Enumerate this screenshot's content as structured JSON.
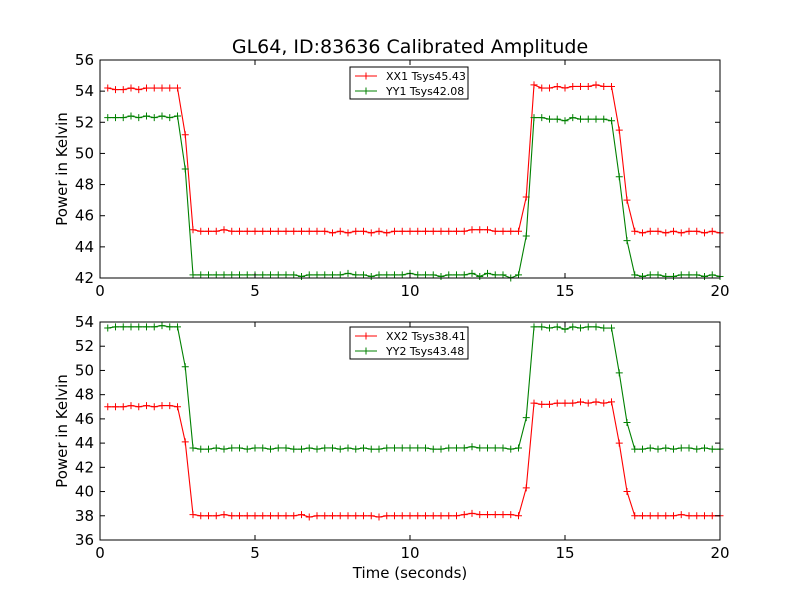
{
  "figure": {
    "title": "GL64, ID:83636 Calibrated Amplitude",
    "xlabel": "Time (seconds)"
  },
  "colors": {
    "red": "#ff0000",
    "green": "#008000"
  },
  "chart_data": [
    {
      "type": "line",
      "title": "GL64, ID:83636 Calibrated Amplitude",
      "xlabel": "",
      "ylabel": "Power in Kelvin",
      "xlim": [
        0,
        20
      ],
      "ylim": [
        42,
        56
      ],
      "xticks": [
        0,
        5,
        10,
        15,
        20
      ],
      "yticks": [
        42,
        44,
        46,
        48,
        50,
        52,
        54,
        56
      ],
      "grid": false,
      "legend": "top-center",
      "x": [
        0.25,
        0.5,
        0.75,
        1.0,
        1.25,
        1.5,
        1.75,
        2.0,
        2.25,
        2.5,
        2.75,
        3.0,
        3.25,
        3.5,
        3.75,
        4.0,
        4.25,
        4.5,
        4.75,
        5.0,
        5.25,
        5.5,
        5.75,
        6.0,
        6.25,
        6.5,
        6.75,
        7.0,
        7.25,
        7.5,
        7.75,
        8.0,
        8.25,
        8.5,
        8.75,
        9.0,
        9.25,
        9.5,
        9.75,
        10.0,
        10.25,
        10.5,
        10.75,
        11.0,
        11.25,
        11.5,
        11.75,
        12.0,
        12.25,
        12.5,
        12.75,
        13.0,
        13.25,
        13.5,
        13.75,
        14.0,
        14.25,
        14.5,
        14.75,
        15.0,
        15.25,
        15.5,
        15.75,
        16.0,
        16.25,
        16.5,
        16.75,
        17.0,
        17.25,
        17.5,
        17.75,
        18.0,
        18.25,
        18.5,
        18.75,
        19.0,
        19.25,
        19.5,
        19.75,
        20.0
      ],
      "series": [
        {
          "name": "XX1 Tsys45.43",
          "color": "#ff0000",
          "values": [
            54.2,
            54.1,
            54.1,
            54.2,
            54.1,
            54.2,
            54.2,
            54.2,
            54.2,
            54.2,
            51.2,
            45.1,
            45.0,
            45.0,
            45.0,
            45.1,
            45.0,
            45.0,
            45.0,
            45.0,
            45.0,
            45.0,
            45.0,
            45.0,
            45.0,
            45.0,
            45.0,
            45.0,
            45.0,
            44.9,
            45.0,
            44.9,
            45.0,
            45.0,
            44.9,
            45.0,
            44.9,
            45.0,
            45.0,
            45.0,
            45.0,
            45.0,
            45.0,
            45.0,
            45.0,
            45.0,
            45.0,
            45.1,
            45.1,
            45.1,
            45.0,
            45.0,
            45.0,
            45.0,
            47.2,
            54.4,
            54.2,
            54.2,
            54.3,
            54.2,
            54.3,
            54.3,
            54.3,
            54.4,
            54.3,
            54.3,
            51.5,
            47.0,
            45.0,
            44.9,
            45.0,
            45.0,
            44.9,
            45.0,
            44.9,
            45.0,
            45.0,
            44.9,
            45.0,
            44.9
          ]
        },
        {
          "name": "YY1 Tsys42.08",
          "color": "#008000",
          "values": [
            52.3,
            52.3,
            52.3,
            52.4,
            52.3,
            52.4,
            52.3,
            52.4,
            52.3,
            52.4,
            49.0,
            42.2,
            42.2,
            42.2,
            42.2,
            42.2,
            42.2,
            42.2,
            42.2,
            42.2,
            42.2,
            42.2,
            42.2,
            42.2,
            42.2,
            42.1,
            42.2,
            42.2,
            42.2,
            42.2,
            42.2,
            42.3,
            42.2,
            42.2,
            42.1,
            42.2,
            42.2,
            42.2,
            42.2,
            42.3,
            42.2,
            42.2,
            42.2,
            42.1,
            42.2,
            42.2,
            42.2,
            42.3,
            42.1,
            42.3,
            42.2,
            42.2,
            42.0,
            42.2,
            44.7,
            52.3,
            52.3,
            52.2,
            52.2,
            52.1,
            52.3,
            52.2,
            52.2,
            52.2,
            52.2,
            52.1,
            48.5,
            44.4,
            42.2,
            42.1,
            42.2,
            42.2,
            42.1,
            42.1,
            42.2,
            42.2,
            42.2,
            42.1,
            42.2,
            42.1
          ]
        }
      ]
    },
    {
      "type": "line",
      "title": "",
      "xlabel": "Time (seconds)",
      "ylabel": "Power in Kelvin",
      "xlim": [
        0,
        20
      ],
      "ylim": [
        36,
        54
      ],
      "xticks": [
        0,
        5,
        10,
        15,
        20
      ],
      "yticks": [
        36,
        38,
        40,
        42,
        44,
        46,
        48,
        50,
        52,
        54
      ],
      "grid": false,
      "legend": "top-center",
      "x": [
        0.25,
        0.5,
        0.75,
        1.0,
        1.25,
        1.5,
        1.75,
        2.0,
        2.25,
        2.5,
        2.75,
        3.0,
        3.25,
        3.5,
        3.75,
        4.0,
        4.25,
        4.5,
        4.75,
        5.0,
        5.25,
        5.5,
        5.75,
        6.0,
        6.25,
        6.5,
        6.75,
        7.0,
        7.25,
        7.5,
        7.75,
        8.0,
        8.25,
        8.5,
        8.75,
        9.0,
        9.25,
        9.5,
        9.75,
        10.0,
        10.25,
        10.5,
        10.75,
        11.0,
        11.25,
        11.5,
        11.75,
        12.0,
        12.25,
        12.5,
        12.75,
        13.0,
        13.25,
        13.5,
        13.75,
        14.0,
        14.25,
        14.5,
        14.75,
        15.0,
        15.25,
        15.5,
        15.75,
        16.0,
        16.25,
        16.5,
        16.75,
        17.0,
        17.25,
        17.5,
        17.75,
        18.0,
        18.25,
        18.5,
        18.75,
        19.0,
        19.25,
        19.5,
        19.75,
        20.0
      ],
      "series": [
        {
          "name": "XX2 Tsys38.41",
          "color": "#ff0000",
          "values": [
            47.0,
            47.0,
            47.0,
            47.1,
            47.0,
            47.1,
            47.0,
            47.1,
            47.1,
            47.0,
            44.1,
            38.1,
            38.0,
            38.0,
            38.0,
            38.1,
            38.0,
            38.0,
            38.0,
            38.0,
            38.0,
            38.0,
            38.0,
            38.0,
            38.0,
            38.1,
            37.9,
            38.0,
            38.0,
            38.0,
            38.0,
            38.0,
            38.0,
            38.0,
            38.0,
            37.9,
            38.0,
            38.0,
            38.0,
            38.0,
            38.0,
            38.0,
            38.0,
            38.0,
            38.0,
            38.0,
            38.1,
            38.2,
            38.1,
            38.1,
            38.1,
            38.1,
            38.1,
            38.0,
            40.3,
            47.3,
            47.2,
            47.2,
            47.3,
            47.3,
            47.3,
            47.4,
            47.3,
            47.4,
            47.3,
            47.4,
            44.0,
            40.0,
            38.0,
            38.0,
            38.0,
            38.0,
            38.0,
            38.0,
            38.1,
            38.0,
            38.0,
            38.0,
            38.0,
            38.0
          ]
        },
        {
          "name": "YY2 Tsys43.48",
          "color": "#008000",
          "values": [
            53.5,
            53.6,
            53.6,
            53.6,
            53.6,
            53.6,
            53.6,
            53.7,
            53.6,
            53.6,
            50.3,
            43.6,
            43.5,
            43.5,
            43.6,
            43.5,
            43.6,
            43.6,
            43.5,
            43.6,
            43.6,
            43.5,
            43.6,
            43.6,
            43.5,
            43.5,
            43.6,
            43.5,
            43.6,
            43.6,
            43.5,
            43.6,
            43.5,
            43.6,
            43.5,
            43.5,
            43.6,
            43.6,
            43.6,
            43.6,
            43.6,
            43.6,
            43.5,
            43.5,
            43.6,
            43.6,
            43.6,
            43.7,
            43.6,
            43.6,
            43.6,
            43.6,
            43.5,
            43.6,
            46.1,
            53.6,
            53.6,
            53.5,
            53.6,
            53.4,
            53.6,
            53.5,
            53.6,
            53.6,
            53.5,
            53.5,
            49.8,
            45.7,
            43.5,
            43.5,
            43.6,
            43.5,
            43.6,
            43.5,
            43.6,
            43.6,
            43.5,
            43.6,
            43.5,
            43.5
          ]
        }
      ]
    }
  ]
}
